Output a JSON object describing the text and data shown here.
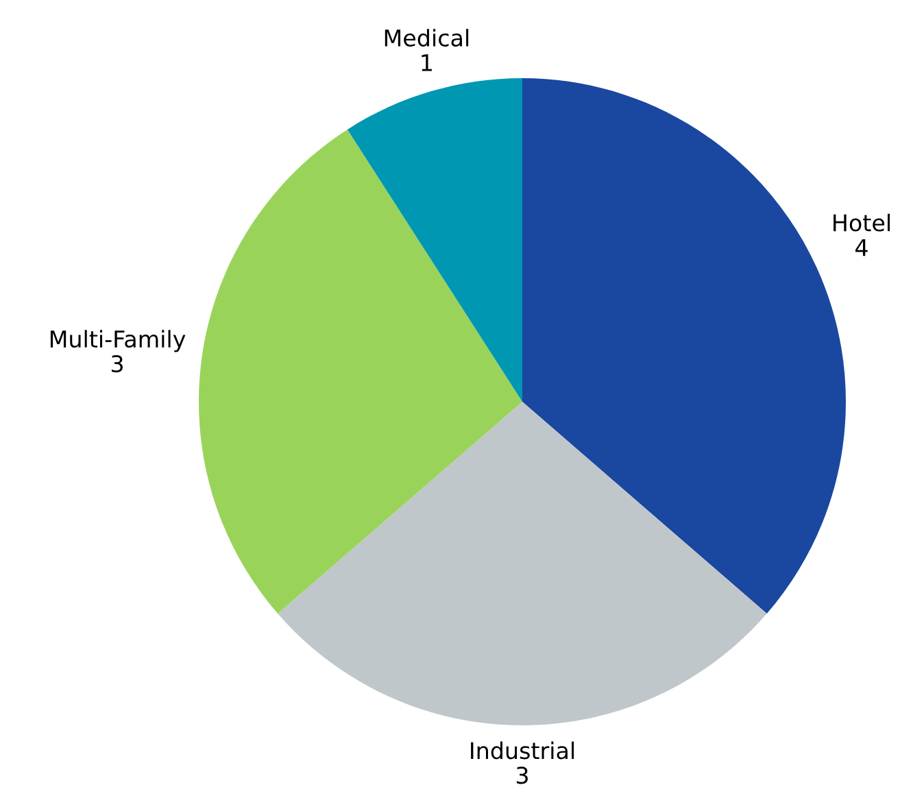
{
  "chart_data": {
    "type": "pie",
    "categories": [
      "Hotel",
      "Industrial",
      "Multi-Family",
      "Medical"
    ],
    "values": [
      4,
      3,
      3,
      1
    ],
    "colors": [
      "#1a47a0",
      "#c0c7ca",
      "#9ad35a",
      "#0097b2"
    ],
    "data_labels": true
  }
}
